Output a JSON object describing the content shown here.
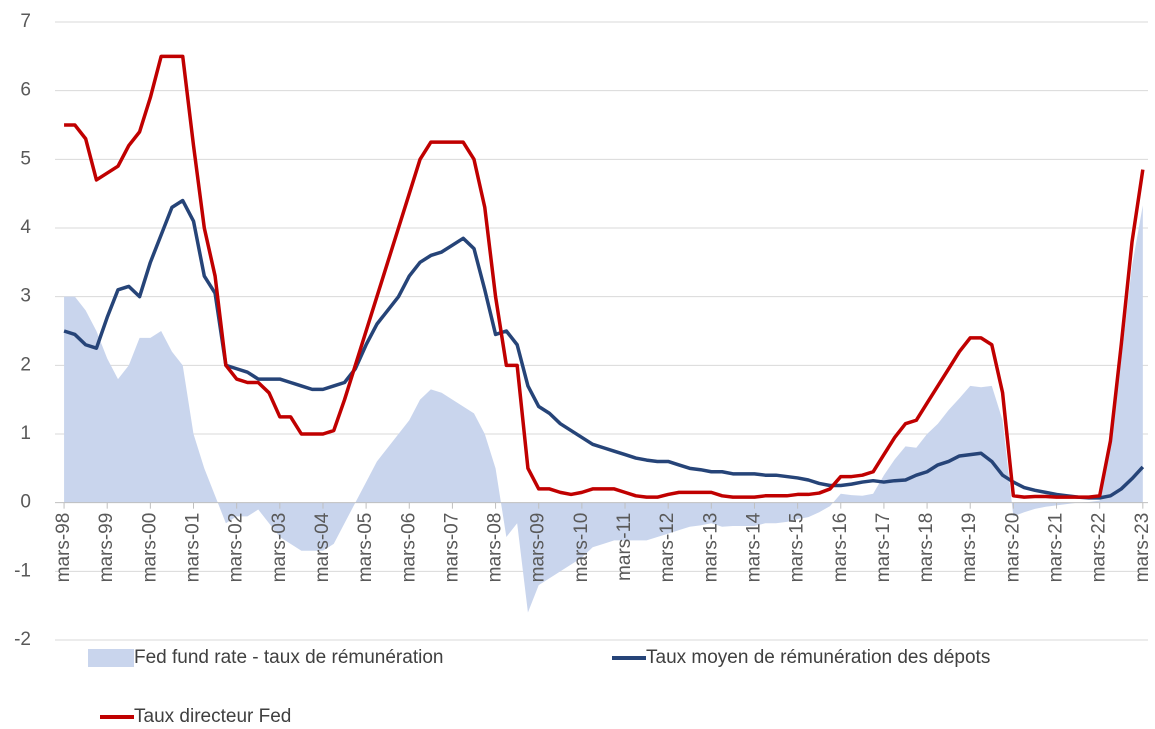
{
  "chart_data": {
    "type": "line",
    "x": [
      1998.17,
      1998.42,
      1998.67,
      1998.92,
      1999.17,
      1999.42,
      1999.67,
      1999.92,
      2000.17,
      2000.42,
      2000.67,
      2000.92,
      2001.17,
      2001.42,
      2001.67,
      2001.92,
      2002.17,
      2002.42,
      2002.67,
      2002.92,
      2003.17,
      2003.42,
      2003.67,
      2003.92,
      2004.17,
      2004.42,
      2004.67,
      2004.92,
      2005.17,
      2005.42,
      2005.67,
      2005.92,
      2006.17,
      2006.42,
      2006.67,
      2006.92,
      2007.17,
      2007.42,
      2007.67,
      2007.92,
      2008.17,
      2008.42,
      2008.67,
      2008.92,
      2009.17,
      2009.42,
      2009.67,
      2009.92,
      2010.17,
      2010.42,
      2010.67,
      2010.92,
      2011.17,
      2011.42,
      2011.67,
      2011.92,
      2012.17,
      2012.42,
      2012.67,
      2012.92,
      2013.17,
      2013.42,
      2013.67,
      2013.92,
      2014.17,
      2014.42,
      2014.67,
      2014.92,
      2015.17,
      2015.42,
      2015.67,
      2015.92,
      2016.17,
      2016.42,
      2016.67,
      2016.92,
      2017.17,
      2017.42,
      2017.67,
      2017.92,
      2018.17,
      2018.42,
      2018.67,
      2018.92,
      2019.17,
      2019.42,
      2019.67,
      2019.92,
      2020.17,
      2020.42,
      2020.67,
      2020.92,
      2021.17,
      2021.42,
      2021.67,
      2021.92,
      2022.17,
      2022.42,
      2022.67,
      2022.92,
      2023.17
    ],
    "series": [
      {
        "name": "Fed fund rate - taux de rémunération",
        "color": "#c9d5ed",
        "kind": "area",
        "values": [
          3.0,
          3.0,
          2.8,
          2.5,
          2.1,
          1.8,
          2.0,
          2.4,
          2.4,
          2.5,
          2.2,
          2.0,
          1.0,
          0.5,
          0.1,
          -0.3,
          -0.2,
          -0.2,
          -0.1,
          -0.3,
          -0.5,
          -0.6,
          -0.7,
          -0.7,
          -0.7,
          -0.6,
          -0.3,
          0.0,
          0.3,
          0.6,
          0.8,
          1.0,
          1.2,
          1.5,
          1.65,
          1.6,
          1.5,
          1.4,
          1.3,
          1.0,
          0.5,
          -0.5,
          -0.3,
          -1.6,
          -1.2,
          -1.1,
          -1.0,
          -0.9,
          -0.8,
          -0.65,
          -0.6,
          -0.55,
          -0.55,
          -0.55,
          -0.55,
          -0.5,
          -0.45,
          -0.4,
          -0.35,
          -0.33,
          -0.3,
          -0.35,
          -0.34,
          -0.34,
          -0.34,
          -0.3,
          -0.3,
          -0.28,
          -0.24,
          -0.21,
          -0.14,
          -0.05,
          0.13,
          0.11,
          0.1,
          0.13,
          0.4,
          0.63,
          0.82,
          0.8,
          1.0,
          1.15,
          1.35,
          1.52,
          1.7,
          1.68,
          1.7,
          1.2,
          -0.2,
          -0.14,
          -0.09,
          -0.06,
          -0.04,
          -0.02,
          0.0,
          0.01,
          0.03,
          0.8,
          2.1,
          3.45,
          4.33
        ]
      },
      {
        "name": "Taux moyen de rémunération des dépots",
        "color": "#264478",
        "kind": "line",
        "values": [
          2.5,
          2.45,
          2.3,
          2.25,
          2.7,
          3.1,
          3.15,
          3.0,
          3.5,
          3.9,
          4.3,
          4.4,
          4.1,
          3.3,
          3.05,
          2.0,
          1.95,
          1.9,
          1.8,
          1.8,
          1.8,
          1.75,
          1.7,
          1.65,
          1.65,
          1.7,
          1.75,
          1.95,
          2.3,
          2.6,
          2.8,
          3.0,
          3.3,
          3.5,
          3.6,
          3.65,
          3.75,
          3.85,
          3.7,
          3.1,
          2.45,
          2.5,
          2.3,
          1.7,
          1.4,
          1.3,
          1.15,
          1.05,
          0.95,
          0.85,
          0.8,
          0.75,
          0.7,
          0.65,
          0.62,
          0.6,
          0.6,
          0.55,
          0.5,
          0.48,
          0.45,
          0.45,
          0.42,
          0.42,
          0.42,
          0.4,
          0.4,
          0.38,
          0.36,
          0.33,
          0.28,
          0.25,
          0.25,
          0.27,
          0.3,
          0.32,
          0.3,
          0.32,
          0.33,
          0.4,
          0.45,
          0.55,
          0.6,
          0.68,
          0.7,
          0.72,
          0.6,
          0.4,
          0.3,
          0.22,
          0.18,
          0.15,
          0.12,
          0.1,
          0.08,
          0.07,
          0.07,
          0.1,
          0.2,
          0.35,
          0.52
        ]
      },
      {
        "name": "Taux directeur Fed",
        "color": "#c00000",
        "kind": "line",
        "values": [
          5.5,
          5.5,
          5.3,
          4.7,
          4.8,
          4.9,
          5.2,
          5.4,
          5.9,
          6.5,
          6.5,
          6.5,
          5.2,
          4.0,
          3.3,
          2.0,
          1.8,
          1.75,
          1.75,
          1.6,
          1.25,
          1.25,
          1.0,
          1.0,
          1.0,
          1.05,
          1.5,
          2.0,
          2.5,
          3.0,
          3.5,
          4.0,
          4.5,
          5.0,
          5.25,
          5.25,
          5.25,
          5.25,
          5.0,
          4.3,
          3.0,
          2.0,
          2.0,
          0.5,
          0.2,
          0.2,
          0.15,
          0.12,
          0.15,
          0.2,
          0.2,
          0.2,
          0.15,
          0.1,
          0.08,
          0.08,
          0.12,
          0.15,
          0.15,
          0.15,
          0.15,
          0.1,
          0.08,
          0.08,
          0.08,
          0.1,
          0.1,
          0.1,
          0.12,
          0.12,
          0.14,
          0.2,
          0.38,
          0.38,
          0.4,
          0.45,
          0.7,
          0.95,
          1.15,
          1.2,
          1.45,
          1.7,
          1.95,
          2.2,
          2.4,
          2.4,
          2.3,
          1.6,
          0.1,
          0.08,
          0.09,
          0.09,
          0.08,
          0.08,
          0.08,
          0.08,
          0.1,
          0.9,
          2.3,
          3.8,
          4.85
        ]
      }
    ],
    "xlim": [
      1997.96,
      2023.29
    ],
    "xticks": [
      {
        "value": 1998.17,
        "label": "mars-98"
      },
      {
        "value": 1999.17,
        "label": "mars-99"
      },
      {
        "value": 2000.17,
        "label": "mars-00"
      },
      {
        "value": 2001.17,
        "label": "mars-01"
      },
      {
        "value": 2002.17,
        "label": "mars-02"
      },
      {
        "value": 2003.17,
        "label": "mars-03"
      },
      {
        "value": 2004.17,
        "label": "mars-04"
      },
      {
        "value": 2005.17,
        "label": "mars-05"
      },
      {
        "value": 2006.17,
        "label": "mars-06"
      },
      {
        "value": 2007.17,
        "label": "mars-07"
      },
      {
        "value": 2008.17,
        "label": "mars-08"
      },
      {
        "value": 2009.17,
        "label": "mars-09"
      },
      {
        "value": 2010.17,
        "label": "mars-10"
      },
      {
        "value": 2011.17,
        "label": "mars-11"
      },
      {
        "value": 2012.17,
        "label": "mars-12"
      },
      {
        "value": 2013.17,
        "label": "mars-13"
      },
      {
        "value": 2014.17,
        "label": "mars-14"
      },
      {
        "value": 2015.17,
        "label": "mars-15"
      },
      {
        "value": 2016.17,
        "label": "mars-16"
      },
      {
        "value": 2017.17,
        "label": "mars-17"
      },
      {
        "value": 2018.17,
        "label": "mars-18"
      },
      {
        "value": 2019.17,
        "label": "mars-19"
      },
      {
        "value": 2020.17,
        "label": "mars-20"
      },
      {
        "value": 2021.17,
        "label": "mars-21"
      },
      {
        "value": 2022.17,
        "label": "mars-22"
      },
      {
        "value": 2023.17,
        "label": "mars-23"
      }
    ],
    "ylim": [
      -2,
      7
    ],
    "yticks": [
      -2,
      -1,
      0,
      1,
      2,
      3,
      4,
      5,
      6,
      7
    ],
    "grid": true
  }
}
